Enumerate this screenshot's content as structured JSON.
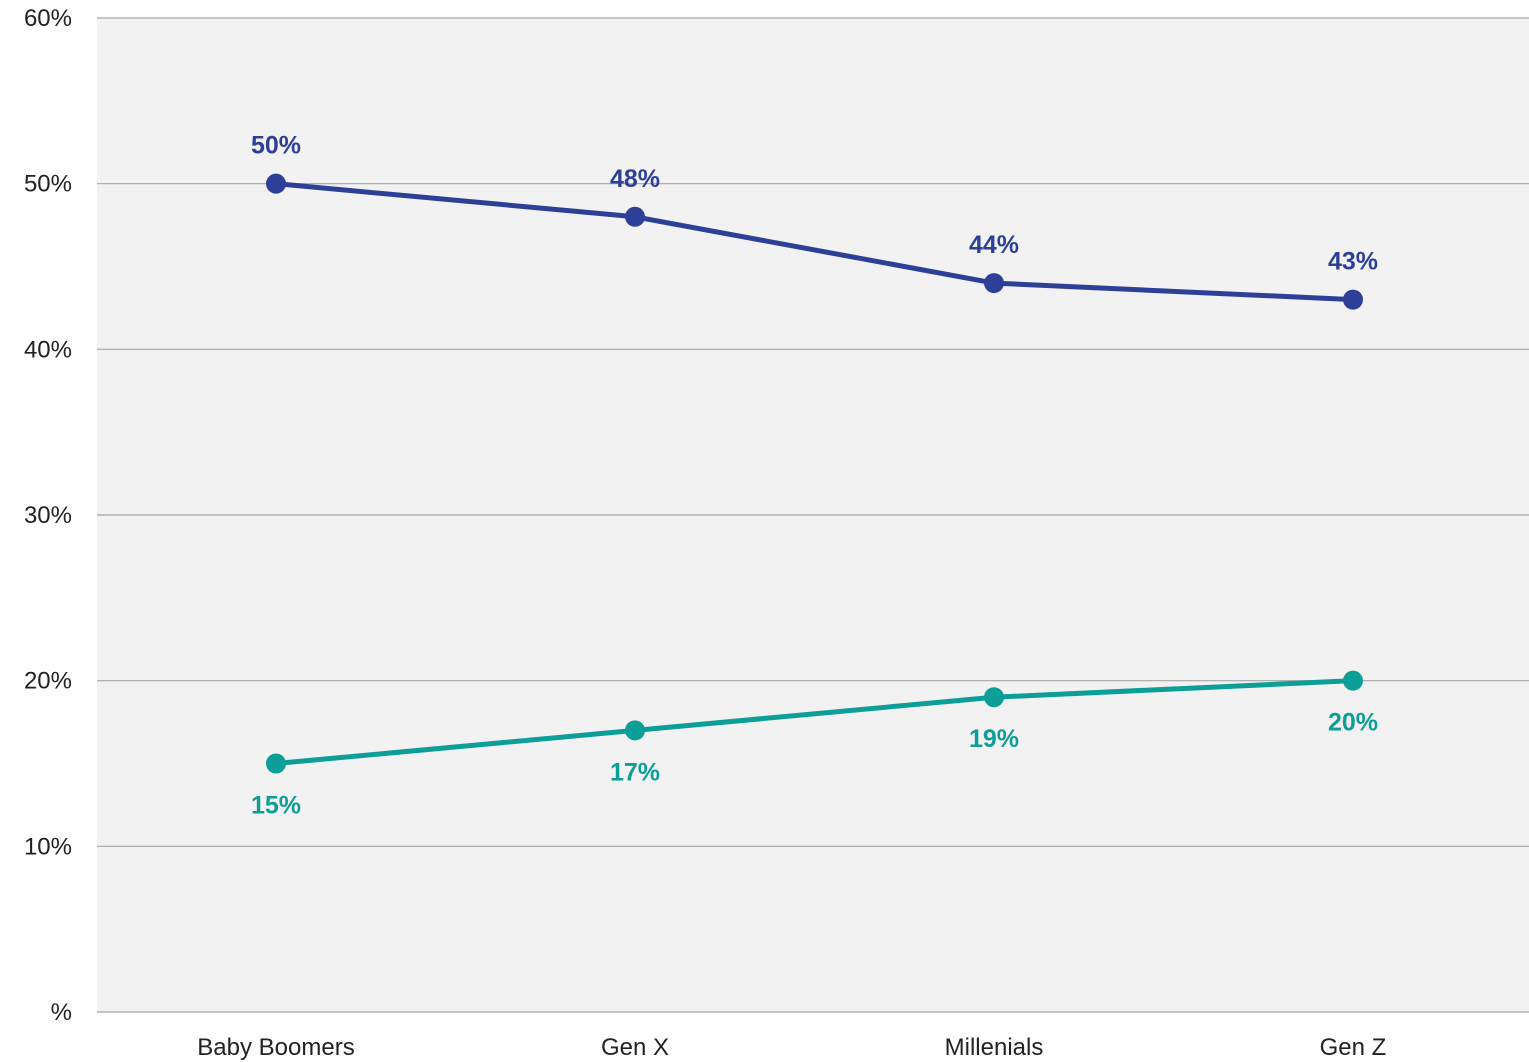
{
  "chart_data": {
    "type": "line",
    "categories": [
      "Baby Boomers",
      "Gen X",
      "Millenials",
      "Gen Z"
    ],
    "series": [
      {
        "values": [
          50,
          48,
          44,
          43
        ],
        "color": "#2E3F97",
        "value_labels": [
          "50%",
          "48%",
          "44%",
          "43%"
        ],
        "label_position": "above"
      },
      {
        "values": [
          15,
          17,
          19,
          20
        ],
        "color": "#0E9E98",
        "value_labels": [
          "15%",
          "17%",
          "19%",
          "20%"
        ],
        "label_position": "below"
      }
    ],
    "ylim": [
      0,
      60
    ],
    "yticks": [
      0,
      10,
      20,
      30,
      40,
      50,
      60
    ],
    "ytick_labels": [
      "%",
      "10%",
      "20%",
      "30%",
      "40%",
      "50%",
      "60%"
    ],
    "grid": true,
    "plot_background": "#F2F2F2",
    "gridline_color": "#A6A6A6"
  }
}
